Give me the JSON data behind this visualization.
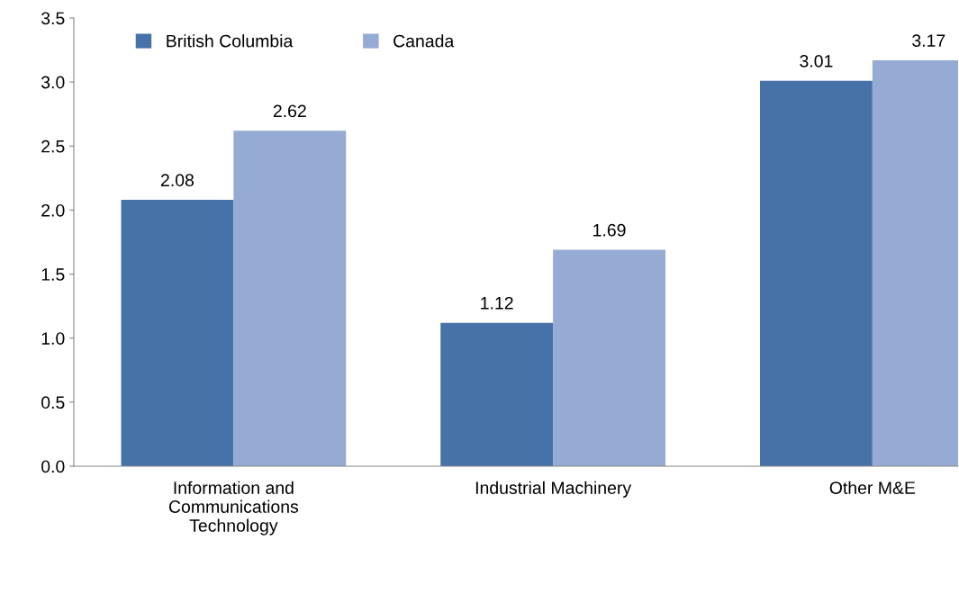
{
  "chart_data": {
    "type": "bar",
    "categories": [
      "Information and\nCommunications\nTechnology",
      "Industrial Machinery",
      "Other M&E"
    ],
    "series": [
      {
        "name": "British Columbia",
        "color": "#4672a8",
        "values": [
          2.08,
          1.12,
          3.01
        ]
      },
      {
        "name": "Canada",
        "color": "#95abd3",
        "values": [
          2.62,
          1.69,
          3.17
        ]
      }
    ],
    "ylim": [
      0,
      3.5
    ],
    "yticks": [
      {
        "value": 0,
        "label": "0.0"
      },
      {
        "value": 0.5,
        "label": "0.5"
      },
      {
        "value": 1,
        "label": "1.0"
      },
      {
        "value": 1.5,
        "label": "1.5"
      },
      {
        "value": 2,
        "label": "2.0"
      },
      {
        "value": 2.5,
        "label": "2.5"
      },
      {
        "value": 3,
        "label": "3.0"
      },
      {
        "value": 3.5,
        "label": "3.5"
      }
    ],
    "data_labels": true,
    "grid": false,
    "legend": "top"
  }
}
